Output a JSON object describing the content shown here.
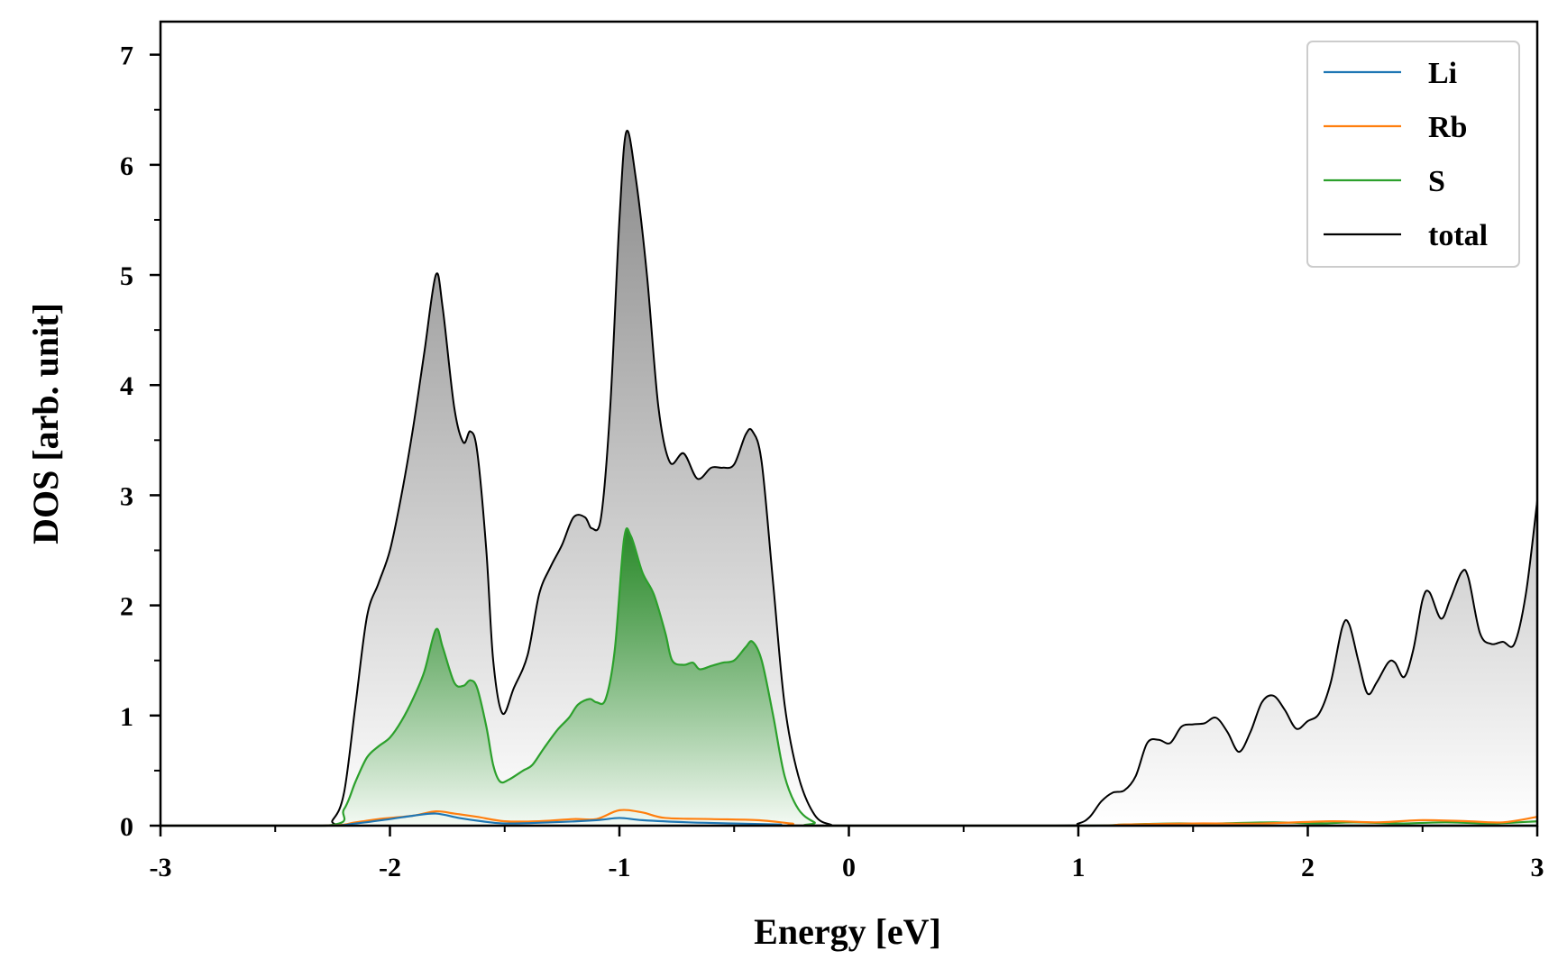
{
  "chart_data": {
    "type": "area",
    "xlabel": "Energy [eV]",
    "ylabel": "DOS [arb. unit]",
    "xlim": [
      -3,
      3
    ],
    "ylim": [
      0,
      7.3
    ],
    "xticks": [
      -3,
      -2,
      -1,
      0,
      1,
      2,
      3
    ],
    "xtick_labels": [
      "-3",
      "-2",
      "-1",
      "0",
      "1",
      "2",
      "3"
    ],
    "yticks": [
      0,
      1,
      2,
      3,
      4,
      5,
      6,
      7
    ],
    "ytick_labels": [
      "0",
      "1",
      "2",
      "3",
      "4",
      "5",
      "6",
      "7"
    ],
    "legend_position": "top-right",
    "grid": false,
    "series": [
      {
        "name": "Li",
        "color": "#1f77b4",
        "filled": false,
        "points": [
          [
            -3,
            0
          ],
          [
            -2.3,
            0
          ],
          [
            -2.15,
            0.02
          ],
          [
            -2.0,
            0.06
          ],
          [
            -1.9,
            0.09
          ],
          [
            -1.8,
            0.11
          ],
          [
            -1.7,
            0.07
          ],
          [
            -1.6,
            0.04
          ],
          [
            -1.5,
            0.02
          ],
          [
            -1.3,
            0.03
          ],
          [
            -1.1,
            0.05
          ],
          [
            -1.0,
            0.07
          ],
          [
            -0.9,
            0.05
          ],
          [
            -0.7,
            0.03
          ],
          [
            -0.5,
            0.02
          ],
          [
            -0.3,
            0.01
          ],
          [
            -0.15,
            0
          ],
          [
            3,
            0
          ]
        ]
      },
      {
        "name": "Rb",
        "color": "#ff7f0e",
        "filled": false,
        "points": [
          [
            -3,
            0
          ],
          [
            -2.3,
            0
          ],
          [
            -2.15,
            0.03
          ],
          [
            -2.05,
            0.06
          ],
          [
            -1.9,
            0.09
          ],
          [
            -1.8,
            0.13
          ],
          [
            -1.72,
            0.11
          ],
          [
            -1.62,
            0.08
          ],
          [
            -1.5,
            0.04
          ],
          [
            -1.35,
            0.04
          ],
          [
            -1.2,
            0.06
          ],
          [
            -1.1,
            0.06
          ],
          [
            -1.0,
            0.14
          ],
          [
            -0.9,
            0.12
          ],
          [
            -0.8,
            0.07
          ],
          [
            -0.6,
            0.06
          ],
          [
            -0.4,
            0.05
          ],
          [
            -0.25,
            0.02
          ],
          [
            -0.15,
            0
          ],
          [
            1.0,
            0
          ],
          [
            1.2,
            0.01
          ],
          [
            1.5,
            0.02
          ],
          [
            1.8,
            0.02
          ],
          [
            2.1,
            0.04
          ],
          [
            2.3,
            0.03
          ],
          [
            2.5,
            0.05
          ],
          [
            2.7,
            0.04
          ],
          [
            2.85,
            0.03
          ],
          [
            3.0,
            0.08
          ]
        ]
      },
      {
        "name": "S",
        "color": "#2ca02c",
        "filled": true,
        "points": [
          [
            -3,
            0
          ],
          [
            -2.28,
            0
          ],
          [
            -2.2,
            0.15
          ],
          [
            -2.15,
            0.4
          ],
          [
            -2.1,
            0.62
          ],
          [
            -2.05,
            0.72
          ],
          [
            -2.0,
            0.8
          ],
          [
            -1.95,
            0.95
          ],
          [
            -1.9,
            1.15
          ],
          [
            -1.85,
            1.4
          ],
          [
            -1.8,
            1.78
          ],
          [
            -1.77,
            1.62
          ],
          [
            -1.72,
            1.3
          ],
          [
            -1.68,
            1.27
          ],
          [
            -1.65,
            1.32
          ],
          [
            -1.62,
            1.25
          ],
          [
            -1.58,
            0.9
          ],
          [
            -1.55,
            0.55
          ],
          [
            -1.52,
            0.4
          ],
          [
            -1.48,
            0.42
          ],
          [
            -1.42,
            0.5
          ],
          [
            -1.38,
            0.55
          ],
          [
            -1.33,
            0.7
          ],
          [
            -1.27,
            0.87
          ],
          [
            -1.22,
            0.98
          ],
          [
            -1.18,
            1.1
          ],
          [
            -1.13,
            1.15
          ],
          [
            -1.1,
            1.12
          ],
          [
            -1.06,
            1.15
          ],
          [
            -1.02,
            1.6
          ],
          [
            -0.98,
            2.6
          ],
          [
            -0.95,
            2.63
          ],
          [
            -0.9,
            2.3
          ],
          [
            -0.85,
            2.1
          ],
          [
            -0.8,
            1.75
          ],
          [
            -0.77,
            1.5
          ],
          [
            -0.72,
            1.46
          ],
          [
            -0.68,
            1.48
          ],
          [
            -0.65,
            1.42
          ],
          [
            -0.6,
            1.45
          ],
          [
            -0.55,
            1.48
          ],
          [
            -0.5,
            1.5
          ],
          [
            -0.45,
            1.62
          ],
          [
            -0.42,
            1.67
          ],
          [
            -0.38,
            1.5
          ],
          [
            -0.33,
            1.0
          ],
          [
            -0.28,
            0.45
          ],
          [
            -0.22,
            0.15
          ],
          [
            -0.15,
            0.03
          ],
          [
            -0.1,
            0
          ],
          [
            1.0,
            0
          ],
          [
            1.2,
            0.01
          ],
          [
            1.4,
            0.02
          ],
          [
            1.6,
            0.02
          ],
          [
            1.85,
            0.03
          ],
          [
            2.05,
            0.02
          ],
          [
            2.2,
            0.03
          ],
          [
            2.4,
            0.02
          ],
          [
            2.6,
            0.03
          ],
          [
            2.8,
            0.02
          ],
          [
            3.0,
            0.04
          ]
        ]
      },
      {
        "name": "total",
        "color": "#000000",
        "filled": true,
        "points": [
          [
            -3,
            0
          ],
          [
            -2.3,
            0
          ],
          [
            -2.25,
            0.05
          ],
          [
            -2.2,
            0.3
          ],
          [
            -2.15,
            1.1
          ],
          [
            -2.1,
            1.9
          ],
          [
            -2.05,
            2.2
          ],
          [
            -2.0,
            2.5
          ],
          [
            -1.95,
            3.0
          ],
          [
            -1.9,
            3.6
          ],
          [
            -1.85,
            4.3
          ],
          [
            -1.8,
            5.0
          ],
          [
            -1.77,
            4.7
          ],
          [
            -1.72,
            3.8
          ],
          [
            -1.68,
            3.48
          ],
          [
            -1.65,
            3.58
          ],
          [
            -1.62,
            3.4
          ],
          [
            -1.58,
            2.5
          ],
          [
            -1.55,
            1.5
          ],
          [
            -1.51,
            1.02
          ],
          [
            -1.46,
            1.25
          ],
          [
            -1.4,
            1.55
          ],
          [
            -1.35,
            2.1
          ],
          [
            -1.3,
            2.35
          ],
          [
            -1.25,
            2.55
          ],
          [
            -1.2,
            2.8
          ],
          [
            -1.15,
            2.8
          ],
          [
            -1.12,
            2.7
          ],
          [
            -1.08,
            2.8
          ],
          [
            -1.04,
            3.8
          ],
          [
            -1.0,
            5.5
          ],
          [
            -0.97,
            6.3
          ],
          [
            -0.93,
            5.9
          ],
          [
            -0.88,
            5.0
          ],
          [
            -0.83,
            3.8
          ],
          [
            -0.78,
            3.3
          ],
          [
            -0.72,
            3.38
          ],
          [
            -0.66,
            3.15
          ],
          [
            -0.6,
            3.25
          ],
          [
            -0.55,
            3.25
          ],
          [
            -0.5,
            3.28
          ],
          [
            -0.45,
            3.55
          ],
          [
            -0.42,
            3.58
          ],
          [
            -0.38,
            3.3
          ],
          [
            -0.33,
            2.2
          ],
          [
            -0.28,
            1.1
          ],
          [
            -0.22,
            0.45
          ],
          [
            -0.15,
            0.1
          ],
          [
            -0.08,
            0.01
          ],
          [
            0.0,
            0
          ],
          [
            0.9,
            0
          ],
          [
            1.0,
            0.02
          ],
          [
            1.05,
            0.08
          ],
          [
            1.1,
            0.22
          ],
          [
            1.15,
            0.3
          ],
          [
            1.2,
            0.32
          ],
          [
            1.25,
            0.45
          ],
          [
            1.3,
            0.75
          ],
          [
            1.35,
            0.78
          ],
          [
            1.4,
            0.75
          ],
          [
            1.45,
            0.9
          ],
          [
            1.5,
            0.92
          ],
          [
            1.55,
            0.93
          ],
          [
            1.6,
            0.98
          ],
          [
            1.65,
            0.85
          ],
          [
            1.7,
            0.67
          ],
          [
            1.75,
            0.85
          ],
          [
            1.8,
            1.12
          ],
          [
            1.85,
            1.18
          ],
          [
            1.9,
            1.05
          ],
          [
            1.95,
            0.88
          ],
          [
            2.0,
            0.95
          ],
          [
            2.05,
            1.02
          ],
          [
            2.1,
            1.3
          ],
          [
            2.15,
            1.8
          ],
          [
            2.18,
            1.83
          ],
          [
            2.22,
            1.5
          ],
          [
            2.26,
            1.2
          ],
          [
            2.3,
            1.3
          ],
          [
            2.35,
            1.48
          ],
          [
            2.38,
            1.48
          ],
          [
            2.42,
            1.35
          ],
          [
            2.46,
            1.6
          ],
          [
            2.5,
            2.05
          ],
          [
            2.53,
            2.12
          ],
          [
            2.58,
            1.88
          ],
          [
            2.62,
            2.05
          ],
          [
            2.67,
            2.3
          ],
          [
            2.7,
            2.25
          ],
          [
            2.75,
            1.75
          ],
          [
            2.8,
            1.65
          ],
          [
            2.85,
            1.67
          ],
          [
            2.9,
            1.65
          ],
          [
            2.95,
            2.1
          ],
          [
            3.0,
            2.95
          ]
        ]
      }
    ]
  }
}
